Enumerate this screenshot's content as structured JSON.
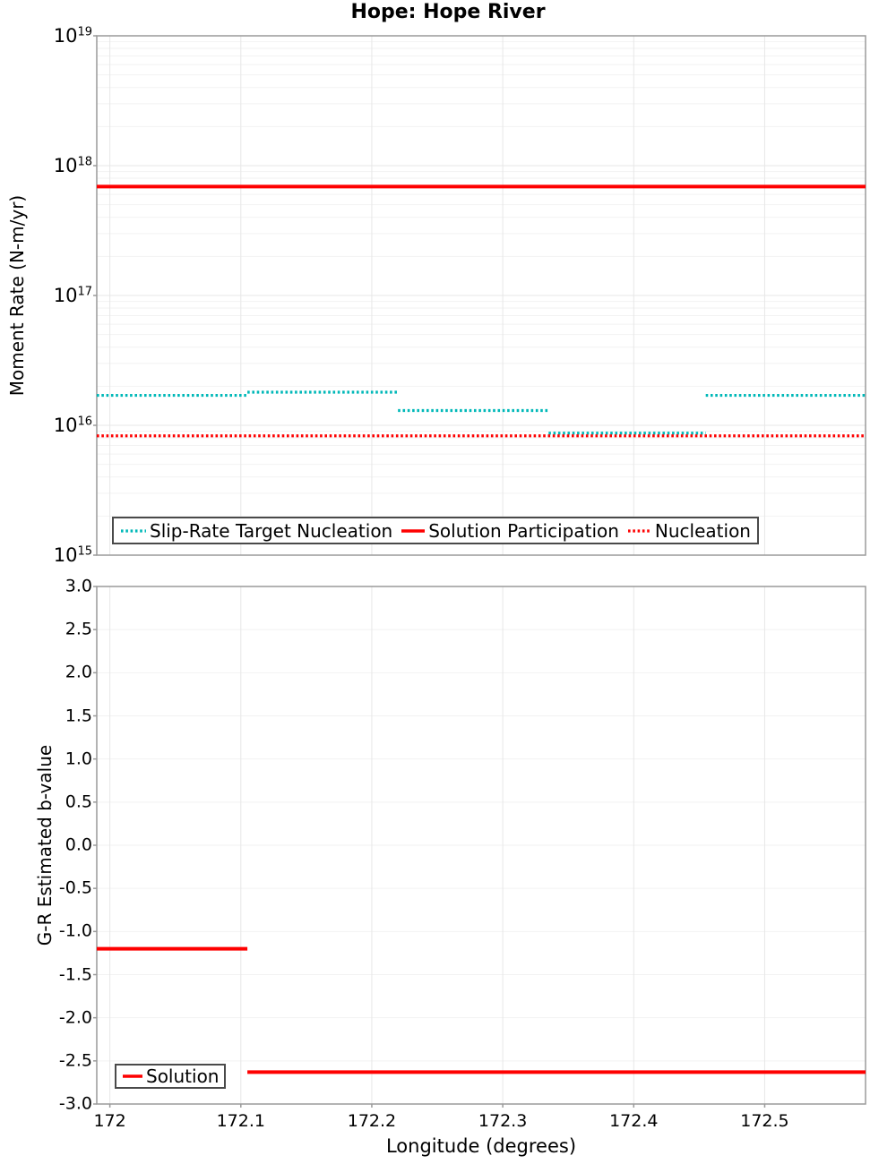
{
  "title": "Hope: Hope River",
  "colors": {
    "teal": "#00b8b8",
    "red": "#fe0000",
    "grid_minor": "#f2f2f2",
    "grid_major": "#e7e7e7",
    "panel_border": "#9a9a9a",
    "legend_border": "#4a4a4a",
    "text": "#000000"
  },
  "chart_data": [
    {
      "type": "line",
      "title": "Hope: Hope River",
      "ylabel": "Moment Rate (N-m/yr)",
      "yscale": "log",
      "ylim": [
        1000000000000000.0,
        1e+19
      ],
      "y_tick_exponents": [
        19,
        18,
        17,
        16,
        15
      ],
      "xlim": [
        171.99,
        172.577
      ],
      "x_ticks": [
        172,
        172.1,
        172.2,
        172.3,
        172.4,
        172.5
      ],
      "grid": true,
      "legend_position": "bottom-left-inside",
      "series": [
        {
          "name": "Slip-Rate Target Nucleation",
          "color": "#00b8b8",
          "style": "dotted",
          "segments": [
            {
              "x": [
                171.99,
                172.105
              ],
              "y": 1.7e+16
            },
            {
              "x": [
                172.105,
                172.22
              ],
              "y": 1.8e+16
            },
            {
              "x": [
                172.22,
                172.335
              ],
              "y": 1.3e+16
            },
            {
              "x": [
                172.335,
                172.455
              ],
              "y": 8700000000000000.0
            },
            {
              "x": [
                172.455,
                172.577
              ],
              "y": 1.7e+16
            }
          ]
        },
        {
          "name": "Nucleation",
          "color": "#fe0000",
          "style": "dotted",
          "segments": [
            {
              "x": [
                171.99,
                172.577
              ],
              "y": 8300000000000000.0
            }
          ]
        },
        {
          "name": "Solution Participation",
          "color": "#fe0000",
          "style": "solid",
          "segments": [
            {
              "x": [
                171.99,
                172.577
              ],
              "y": 6.9e+17
            }
          ]
        }
      ],
      "legend_order": [
        "Slip-Rate Target Nucleation",
        "Solution Participation",
        "Nucleation"
      ]
    },
    {
      "type": "line",
      "ylabel": "G-R Estimated b-value",
      "xlabel": "Longitude (degrees)",
      "yscale": "linear",
      "ylim": [
        -3.0,
        3.0
      ],
      "y_tick_step": 0.5,
      "y_ticks": [
        3.0,
        2.5,
        2.0,
        1.5,
        1.0,
        0.5,
        0.0,
        -0.5,
        -1.0,
        -1.5,
        -2.0,
        -2.5,
        -3.0
      ],
      "xlim": [
        171.99,
        172.577
      ],
      "x_ticks": [
        172,
        172.1,
        172.2,
        172.3,
        172.4,
        172.5
      ],
      "grid": true,
      "legend_position": "bottom-left-inside",
      "series": [
        {
          "name": "Solution",
          "color": "#fe0000",
          "style": "solid",
          "segments": [
            {
              "x": [
                171.99,
                172.105
              ],
              "y": -1.2
            },
            {
              "x": [
                172.105,
                172.577
              ],
              "y": -2.63
            }
          ]
        }
      ]
    }
  ]
}
